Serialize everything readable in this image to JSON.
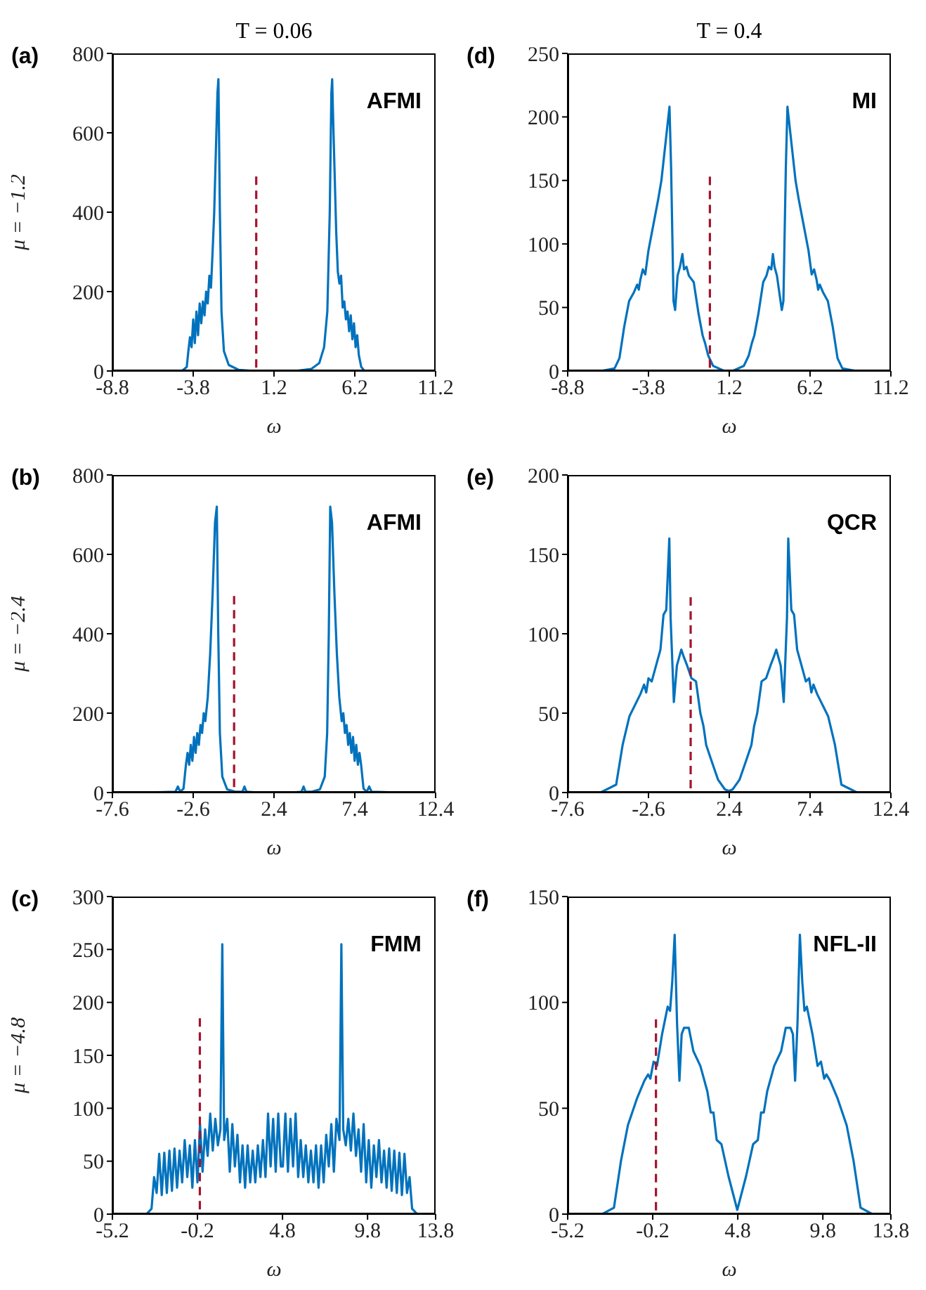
{
  "chart_data": [
    {
      "type": "line",
      "title": "T = 0.06",
      "ylabel": "μ = −1.2",
      "xlabel": "ω",
      "annotations": [
        "(a)",
        "AFMI"
      ],
      "xlim": [
        -8.8,
        11.2
      ],
      "xticks": [
        -8.8,
        -3.8,
        1.2,
        6.2,
        11.2
      ],
      "ylim": [
        0,
        800
      ],
      "yticks": [
        0,
        200,
        400,
        600,
        800
      ],
      "series": [
        {
          "color": "#0072bd",
          "x": [
            -6.7,
            -4.5,
            -4.2,
            -4.1,
            -4.0,
            -3.9,
            -3.8,
            -3.7,
            -3.6,
            -3.5,
            -3.4,
            -3.3,
            -3.2,
            -3.1,
            -3.0,
            -2.9,
            -2.8,
            -2.7,
            -2.6,
            -2.5,
            -2.4,
            -2.3,
            -2.24,
            -2.15,
            -2.05,
            -1.9,
            -1.6,
            -1.0,
            0,
            2.5,
            3.5,
            4.0,
            4.3,
            4.5,
            4.65,
            4.75,
            4.8,
            4.85,
            4.95,
            5.05,
            5.15,
            5.25,
            5.35,
            5.45,
            5.55,
            5.65,
            5.75,
            5.85,
            5.95,
            6.05,
            6.15,
            6.25,
            6.35,
            6.45,
            6.6,
            6.8,
            9.2
          ],
          "values": [
            0,
            0,
            10,
            50,
            85,
            60,
            130,
            70,
            150,
            90,
            170,
            120,
            175,
            140,
            200,
            170,
            240,
            210,
            300,
            400,
            550,
            700,
            735,
            400,
            150,
            50,
            15,
            3,
            0,
            0,
            5,
            20,
            60,
            150,
            400,
            700,
            735,
            650,
            500,
            350,
            250,
            220,
            240,
            160,
            175,
            130,
            150,
            100,
            140,
            80,
            120,
            60,
            90,
            40,
            10,
            0,
            0
          ]
        },
        {
          "color": "#a2142f",
          "line_style": "dashed",
          "x": [
            0.1,
            0.1
          ],
          "values": [
            490,
            0
          ]
        }
      ]
    },
    {
      "type": "line",
      "title": "T = 0.4",
      "xlabel": "ω",
      "annotations": [
        "(d)",
        "MI"
      ],
      "xlim": [
        -8.8,
        11.2
      ],
      "xticks": [
        -8.8,
        -3.8,
        1.2,
        6.2,
        11.2
      ],
      "ylim": [
        0,
        250
      ],
      "yticks": [
        0,
        50,
        100,
        150,
        200,
        250
      ],
      "series": [
        {
          "color": "#0072bd",
          "x": [
            -6.75,
            -5.9,
            -5.6,
            -5.3,
            -5.0,
            -4.7,
            -4.5,
            -4.4,
            -4.3,
            -4.15,
            -4.0,
            -3.8,
            -3.5,
            -3.2,
            -3.0,
            -2.5,
            -2.4,
            -2.25,
            -2.15,
            -2.0,
            -1.85,
            -1.7,
            -1.6,
            -1.45,
            -1.3,
            -1.0,
            -0.7,
            -0.45,
            -0.3,
            -0.1,
            0.2,
            0.9,
            1.4,
            2.1,
            2.4,
            2.6,
            2.75,
            3.0,
            3.3,
            3.5,
            3.65,
            3.8,
            3.9,
            4.0,
            4.15,
            4.45,
            4.55,
            4.7,
            4.8,
            5.3,
            5.5,
            5.8,
            6.1,
            6.3,
            6.45,
            6.6,
            6.7,
            6.8,
            7.0,
            7.3,
            7.6,
            7.9,
            8.2,
            9.07
          ],
          "values": [
            0,
            2,
            10,
            35,
            55,
            62,
            68,
            64,
            72,
            80,
            76,
            95,
            115,
            135,
            150,
            208,
            160,
            55,
            48,
            75,
            82,
            92,
            80,
            82,
            75,
            70,
            45,
            28,
            22,
            12,
            4,
            0,
            0,
            4,
            12,
            22,
            28,
            45,
            70,
            75,
            82,
            80,
            92,
            82,
            75,
            48,
            55,
            160,
            208,
            150,
            135,
            115,
            95,
            76,
            80,
            72,
            64,
            68,
            62,
            55,
            35,
            10,
            2,
            0
          ]
        },
        {
          "color": "#a2142f",
          "line_style": "dashed",
          "x": [
            0,
            0
          ],
          "values": [
            153,
            0
          ]
        }
      ]
    },
    {
      "type": "line",
      "ylabel": "μ = −2.4",
      "xlabel": "ω",
      "annotations": [
        "(b)",
        "AFMI"
      ],
      "xlim": [
        -7.6,
        12.4
      ],
      "xticks": [
        -7.6,
        -2.6,
        2.4,
        7.4,
        12.4
      ],
      "ylim": [
        0,
        800
      ],
      "yticks": [
        0,
        200,
        400,
        600,
        800
      ],
      "series": [
        {
          "color": "#0072bd",
          "x": [
            -5.6,
            -3.7,
            -3.55,
            -3.4,
            -3.2,
            -3.05,
            -2.95,
            -2.85,
            -2.75,
            -2.65,
            -2.55,
            -2.45,
            -2.35,
            -2.25,
            -2.15,
            -2.05,
            -1.95,
            -1.85,
            -1.7,
            -1.55,
            -1.4,
            -1.25,
            -1.14,
            -1.05,
            -0.95,
            -0.8,
            -0.5,
            0,
            0.45,
            0.57,
            0.7,
            1.5,
            3.5,
            4.1,
            4.23,
            4.35,
            4.74,
            5.24,
            5.54,
            5.69,
            5.79,
            5.88,
            5.99,
            6.14,
            6.29,
            6.44,
            6.59,
            6.69,
            6.79,
            6.89,
            6.99,
            7.09,
            7.19,
            7.29,
            7.39,
            7.49,
            7.59,
            7.69,
            7.79,
            7.94,
            8.14,
            8.29,
            8.44,
            10.3
          ],
          "values": [
            0,
            2,
            15,
            2,
            10,
            70,
            100,
            70,
            120,
            80,
            140,
            100,
            150,
            120,
            170,
            150,
            200,
            180,
            240,
            350,
            500,
            680,
            720,
            400,
            150,
            40,
            8,
            2,
            2,
            15,
            2,
            0,
            0,
            2,
            15,
            2,
            2,
            8,
            40,
            150,
            400,
            720,
            680,
            500,
            350,
            240,
            180,
            200,
            150,
            170,
            120,
            150,
            100,
            140,
            80,
            120,
            70,
            100,
            70,
            10,
            2,
            15,
            2,
            0
          ]
        },
        {
          "color": "#a2142f",
          "line_style": "dashed",
          "x": [
            -0.07,
            -0.07
          ],
          "values": [
            495,
            0
          ]
        }
      ]
    },
    {
      "type": "line",
      "xlabel": "ω",
      "annotations": [
        "(e)",
        "QCR"
      ],
      "xlim": [
        -7.6,
        12.4
      ],
      "xticks": [
        -7.6,
        -2.6,
        2.4,
        7.4,
        12.4
      ],
      "ylim": [
        0,
        200
      ],
      "yticks": [
        0,
        50,
        100,
        150,
        200
      ],
      "series": [
        {
          "color": "#0072bd",
          "x": [
            -5.57,
            -4.6,
            -4.2,
            -3.78,
            -3.1,
            -2.87,
            -2.74,
            -2.6,
            -2.4,
            -2.13,
            -1.86,
            -1.67,
            -1.5,
            -1.31,
            -1.23,
            -1.03,
            -0.84,
            -0.57,
            -0.4,
            -0.21,
            0.06,
            0.34,
            0.61,
            0.8,
            0.97,
            1.3,
            1.71,
            2.13,
            2.37,
            2.61,
            3.03,
            3.44,
            3.77,
            3.94,
            4.13,
            4.4,
            4.68,
            4.95,
            5.14,
            5.31,
            5.58,
            5.77,
            5.97,
            6.05,
            6.24,
            6.41,
            6.6,
            6.87,
            7.14,
            7.34,
            7.48,
            7.61,
            7.84,
            8.52,
            8.94,
            9.34,
            10.31
          ],
          "values": [
            0,
            5,
            30,
            48,
            62,
            68,
            63,
            72,
            70,
            80,
            90,
            112,
            115,
            160,
            110,
            57,
            80,
            90,
            85,
            80,
            72,
            70,
            50,
            42,
            30,
            20,
            8,
            2,
            1,
            2,
            8,
            20,
            30,
            42,
            50,
            70,
            72,
            80,
            85,
            90,
            80,
            57,
            110,
            160,
            115,
            112,
            90,
            80,
            70,
            72,
            63,
            68,
            62,
            48,
            30,
            5,
            0
          ]
        },
        {
          "color": "#a2142f",
          "line_style": "dashed",
          "x": [
            0.01,
            0.01
          ],
          "values": [
            123,
            0
          ]
        }
      ]
    },
    {
      "type": "line",
      "ylabel": "μ = −4.8",
      "xlabel": "ω",
      "annotations": [
        "(c)",
        "FMM"
      ],
      "xlim": [
        -5.2,
        13.8
      ],
      "xticks": [
        -5.2,
        -0.2,
        4.8,
        9.8,
        13.8
      ],
      "ylim": [
        0,
        300
      ],
      "yticks": [
        0,
        50,
        100,
        150,
        200,
        250,
        300
      ],
      "series": [
        {
          "color": "#0072bd",
          "x": [
            -3.2,
            -2.9,
            -2.75,
            -2.6,
            -2.45,
            -2.3,
            -2.15,
            -2.0,
            -1.85,
            -1.7,
            -1.55,
            -1.4,
            -1.25,
            -1.1,
            -0.95,
            -0.8,
            -0.65,
            -0.5,
            -0.35,
            -0.2,
            -0.05,
            0.1,
            0.25,
            0.4,
            0.55,
            0.7,
            0.85,
            1.0,
            1.15,
            1.26,
            1.37,
            1.55,
            1.7,
            1.85,
            2.0,
            2.15,
            2.3,
            2.45,
            2.6,
            2.75,
            2.9,
            3.05,
            3.2,
            3.35,
            3.5,
            3.65,
            3.8,
            3.95,
            4.1,
            4.25,
            4.4,
            4.55,
            4.7,
            4.82,
            4.97,
            5.12,
            5.27,
            5.42,
            5.57,
            5.72,
            5.87,
            6.02,
            6.17,
            6.32,
            6.47,
            6.62,
            6.77,
            6.92,
            7.07,
            7.22,
            7.37,
            7.52,
            7.67,
            7.82,
            7.97,
            8.15,
            8.26,
            8.37,
            8.52,
            8.67,
            8.82,
            8.97,
            9.12,
            9.27,
            9.42,
            9.57,
            9.72,
            9.87,
            10.02,
            10.17,
            10.32,
            10.47,
            10.62,
            10.77,
            10.92,
            11.07,
            11.22,
            11.37,
            11.52,
            11.67,
            11.82,
            11.97,
            12.12,
            12.27,
            12.42,
            12.72
          ],
          "values": [
            0,
            5,
            35,
            20,
            57,
            18,
            58,
            20,
            60,
            22,
            62,
            25,
            60,
            30,
            70,
            35,
            65,
            25,
            70,
            30,
            85,
            40,
            80,
            55,
            95,
            60,
            90,
            65,
            80,
            255,
            70,
            90,
            40,
            85,
            45,
            75,
            30,
            65,
            25,
            65,
            30,
            60,
            30,
            65,
            35,
            70,
            35,
            95,
            45,
            90,
            40,
            95,
            45,
            45,
            95,
            40,
            90,
            45,
            95,
            35,
            70,
            35,
            65,
            30,
            60,
            30,
            65,
            25,
            65,
            30,
            75,
            45,
            85,
            40,
            90,
            70,
            255,
            80,
            65,
            90,
            60,
            95,
            55,
            80,
            40,
            85,
            30,
            70,
            25,
            65,
            35,
            70,
            30,
            60,
            25,
            62,
            22,
            60,
            20,
            58,
            18,
            57,
            20,
            35,
            5,
            0
          ]
        },
        {
          "color": "#a2142f",
          "line_style": "dashed",
          "x": [
            -0.06,
            -0.06
          ],
          "values": [
            185,
            0
          ]
        }
      ]
    },
    {
      "type": "line",
      "xlabel": "ω",
      "annotations": [
        "(f)",
        "NFL-II"
      ],
      "xlim": [
        -5.2,
        13.8
      ],
      "xticks": [
        -5.2,
        -0.2,
        4.8,
        9.8,
        13.8
      ],
      "ylim": [
        0,
        150
      ],
      "yticks": [
        0,
        50,
        100,
        150
      ],
      "series": [
        {
          "color": "#0072bd",
          "x": [
            -3.17,
            -2.48,
            -2.07,
            -1.66,
            -1.11,
            -0.69,
            -0.47,
            -0.34,
            -0.15,
            0.05,
            0.35,
            0.68,
            0.82,
            0.95,
            1.09,
            1.23,
            1.37,
            1.5,
            1.64,
            1.92,
            2.19,
            2.6,
            3.01,
            3.21,
            3.37,
            3.56,
            3.84,
            4.25,
            4.77,
            5.29,
            5.7,
            5.98,
            6.17,
            6.33,
            6.53,
            6.94,
            7.35,
            7.62,
            7.9,
            8.04,
            8.17,
            8.31,
            8.45,
            8.59,
            8.72,
            8.86,
            9.19,
            9.49,
            9.69,
            9.88,
            10.01,
            10.23,
            10.65,
            11.2,
            11.61,
            12.02,
            12.71
          ],
          "values": [
            0,
            3,
            25,
            42,
            55,
            63,
            66,
            64,
            72,
            70,
            85,
            98,
            96,
            110,
            132,
            90,
            63,
            85,
            88,
            88,
            77,
            70,
            58,
            48,
            48,
            35,
            33,
            18,
            2,
            18,
            33,
            35,
            48,
            48,
            58,
            70,
            77,
            88,
            88,
            85,
            63,
            90,
            132,
            110,
            96,
            98,
            85,
            70,
            72,
            64,
            66,
            63,
            55,
            42,
            25,
            3,
            0
          ]
        },
        {
          "color": "#a2142f",
          "line_style": "dashed",
          "x": [
            -0.01,
            -0.01
          ],
          "values": [
            92,
            0
          ]
        }
      ]
    }
  ]
}
